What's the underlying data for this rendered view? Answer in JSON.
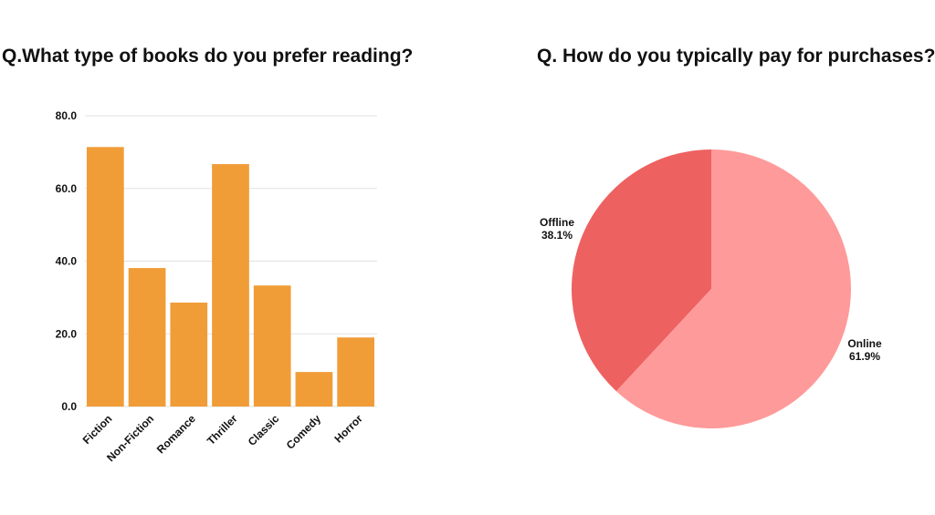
{
  "chart_data": [
    {
      "type": "bar",
      "title": "Q.What type of books do you prefer reading?",
      "categories": [
        "Fiction",
        "Non-Fiction",
        "Romance",
        "Thriller",
        "Classic",
        "Comedy",
        "Horror"
      ],
      "values": [
        71.4,
        38.1,
        28.6,
        66.7,
        33.3,
        9.5,
        19
      ],
      "ylim": [
        0,
        80
      ],
      "yticks": [
        "0.0",
        "20.0",
        "40.0",
        "60.0",
        "80.0"
      ],
      "grid": true,
      "color": "#F09D38"
    },
    {
      "type": "pie",
      "title": "Q. How do you typically pay for purchases?",
      "slices": [
        {
          "label": "Offline",
          "value": 38.1,
          "display": "38.1%",
          "color": "#EE6161"
        },
        {
          "label": "Online",
          "value": 61.9,
          "display": "61.9%",
          "color": "#FF9A9A"
        }
      ]
    }
  ]
}
